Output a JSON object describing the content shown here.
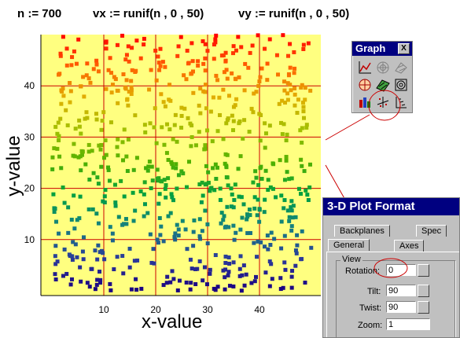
{
  "formulas": {
    "n_def": "n := 700",
    "vx_def": "vx := runif(n , 0 , 50)",
    "vy_def": "vy := runif(n , 0 , 50)"
  },
  "chart_data": {
    "type": "scatter",
    "n": 700,
    "xlabel": "x-value",
    "ylabel": "y-value",
    "xlim": [
      0,
      50
    ],
    "ylim": [
      0,
      50
    ],
    "x_ticks": [
      "10",
      "20",
      "30",
      "40"
    ],
    "y_ticks": [
      "10",
      "20",
      "30",
      "40"
    ],
    "grid": true,
    "background": "#ffff80",
    "grid_color": "#cc0000",
    "colormap": [
      "#1a0080",
      "#2b3a9a",
      "#168080",
      "#00a040",
      "#50b000",
      "#a0c000",
      "#e0b000",
      "#ff6000",
      "#ff0000"
    ]
  },
  "graph_palette": {
    "title": "Graph",
    "close_label": "X",
    "buttons": [
      "xy-plot-icon",
      "polar-plot-icon",
      "surface-plot-icon",
      "vector-field-icon",
      "contour-plot-icon",
      "plot-3d-icon",
      "bar-plot-3d-icon",
      "scatter-plot-3d-icon",
      "vector-field-3d-icon"
    ]
  },
  "dialog": {
    "title": "3-D Plot Format",
    "tabs_back": [
      "Backplanes",
      "Spec"
    ],
    "tabs_front": [
      "General",
      "Axes"
    ],
    "group_label": "View",
    "rotation_label": "Rotation:",
    "rotation_value": "0",
    "tilt_label": "Tilt:",
    "tilt_value": "90",
    "twist_label": "Twist:",
    "twist_value": "90",
    "zoom_label": "Zoom:",
    "zoom_value": "1"
  },
  "highlight_color": "#cc0000"
}
